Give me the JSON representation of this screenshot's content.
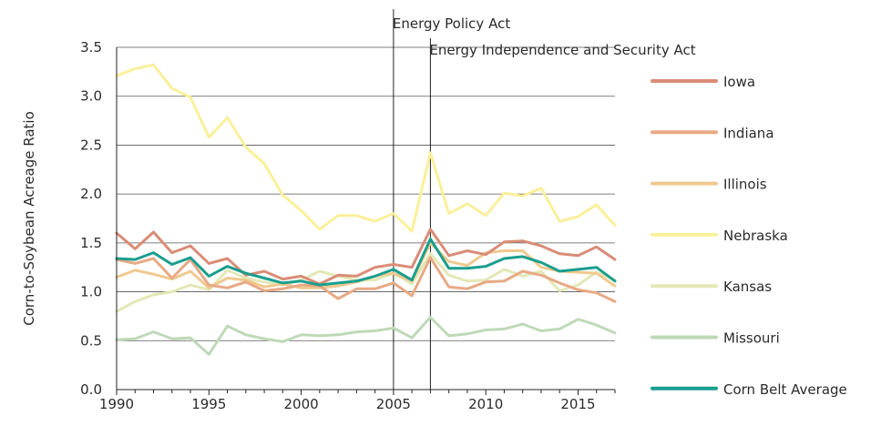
{
  "chart_data": {
    "type": "line",
    "title": "",
    "xlabel": "",
    "ylabel": "Corn-to-Soybean Acreage Ratio",
    "xlim": [
      1990,
      2017
    ],
    "ylim": [
      0,
      3.5
    ],
    "x_ticks": [
      1990,
      1995,
      2000,
      2005,
      2010,
      2015
    ],
    "x_tick_labels": [
      "1990",
      "1995",
      "2000",
      "2005",
      "2010",
      "2015"
    ],
    "y_ticks": [
      0,
      0.5,
      1,
      1.5,
      2,
      2.5,
      3,
      3.5
    ],
    "y_tick_labels": [
      "0.0",
      "0.5",
      "1.0",
      "1.5",
      "2.0",
      "2.5",
      "3.0",
      "3.5"
    ],
    "grid": "horizontal",
    "legend_position": "right",
    "annotations": [
      {
        "x": 2005,
        "label": "Energy Policy Act"
      },
      {
        "x": 2007,
        "label": "Energy Independence and Security Act"
      }
    ],
    "x": [
      1990,
      1991,
      1992,
      1993,
      1994,
      1995,
      1996,
      1997,
      1998,
      1999,
      2000,
      2001,
      2002,
      2003,
      2004,
      2005,
      2006,
      2007,
      2008,
      2009,
      2010,
      2011,
      2012,
      2013,
      2014,
      2015,
      2016,
      2017
    ],
    "series": [
      {
        "name": "Iowa",
        "color": "#d98c76",
        "values": [
          1.6,
          1.44,
          1.61,
          1.4,
          1.47,
          1.29,
          1.34,
          1.17,
          1.21,
          1.13,
          1.16,
          1.08,
          1.17,
          1.16,
          1.25,
          1.28,
          1.25,
          1.64,
          1.37,
          1.42,
          1.38,
          1.51,
          1.52,
          1.47,
          1.39,
          1.37,
          1.46,
          1.33
        ]
      },
      {
        "name": "Indiana",
        "color": "#e8a985",
        "values": [
          1.33,
          1.29,
          1.34,
          1.14,
          1.33,
          1.07,
          1.04,
          1.1,
          1.01,
          1.03,
          1.07,
          1.06,
          0.93,
          1.03,
          1.03,
          1.09,
          0.96,
          1.35,
          1.05,
          1.03,
          1.1,
          1.11,
          1.21,
          1.17,
          1.09,
          1.02,
          0.99,
          0.9
        ]
      },
      {
        "name": "Illinois",
        "color": "#f0c98f",
        "values": [
          1.15,
          1.22,
          1.18,
          1.13,
          1.21,
          1.04,
          1.14,
          1.12,
          1.05,
          1.08,
          1.04,
          1.04,
          1.06,
          1.1,
          1.16,
          1.19,
          1.11,
          1.5,
          1.31,
          1.27,
          1.4,
          1.42,
          1.42,
          1.25,
          1.21,
          1.2,
          1.19,
          1.06
        ]
      },
      {
        "name": "Nebraska",
        "color": "#faf09a",
        "values": [
          3.21,
          3.28,
          3.32,
          3.08,
          2.99,
          2.58,
          2.78,
          2.48,
          2.31,
          1.99,
          1.83,
          1.64,
          1.78,
          1.78,
          1.72,
          1.8,
          1.62,
          2.42,
          1.8,
          1.9,
          1.78,
          2.01,
          1.98,
          2.06,
          1.72,
          1.77,
          1.89,
          1.68
        ]
      },
      {
        "name": "Kansas",
        "color": "#e3e8b6",
        "values": [
          0.8,
          0.9,
          0.97,
          1.0,
          1.07,
          1.02,
          1.22,
          1.14,
          1.1,
          1.07,
          1.12,
          1.21,
          1.16,
          1.12,
          1.12,
          1.19,
          1.08,
          1.39,
          1.17,
          1.11,
          1.12,
          1.23,
          1.16,
          1.21,
          1.01,
          1.07,
          1.2,
          1.12
        ]
      },
      {
        "name": "Missouri",
        "color": "#bfd9b8",
        "values": [
          0.51,
          0.52,
          0.59,
          0.52,
          0.53,
          0.36,
          0.65,
          0.56,
          0.52,
          0.49,
          0.56,
          0.55,
          0.56,
          0.59,
          0.6,
          0.63,
          0.53,
          0.74,
          0.55,
          0.57,
          0.61,
          0.62,
          0.67,
          0.6,
          0.62,
          0.72,
          0.66,
          0.58
        ]
      },
      {
        "name": "Corn Belt Average",
        "color": "#1a9e8e",
        "values": [
          1.34,
          1.33,
          1.4,
          1.28,
          1.35,
          1.16,
          1.26,
          1.19,
          1.14,
          1.09,
          1.11,
          1.07,
          1.09,
          1.11,
          1.16,
          1.23,
          1.12,
          1.54,
          1.24,
          1.24,
          1.26,
          1.34,
          1.36,
          1.3,
          1.21,
          1.23,
          1.25,
          1.11
        ]
      }
    ]
  }
}
